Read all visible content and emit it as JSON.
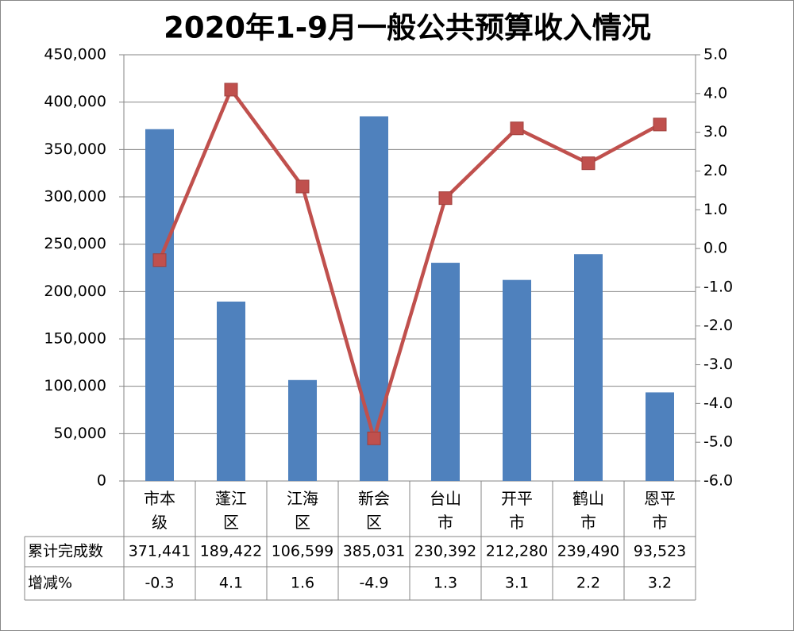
{
  "chart_data": {
    "type": "bar_line",
    "title": "2020年1-9月一般公共预算收入情况",
    "categories": [
      "市本级",
      "蓬江区",
      "江海区",
      "新会区",
      "台山市",
      "开平市",
      "鹤山市",
      "恩平市"
    ],
    "series": [
      {
        "name": "累计完成数",
        "type": "bar",
        "color": "#4f81bd",
        "values": [
          371441,
          189422,
          106599,
          385031,
          230392,
          212280,
          239490,
          93523
        ],
        "value_labels": [
          "371,441",
          "189,422",
          "106,599",
          "385,031",
          "230,392",
          "212,280",
          "239,490",
          "93,523"
        ]
      },
      {
        "name": "增减%",
        "type": "line",
        "axis": "y2",
        "color": "#c0504d",
        "values": [
          -0.3,
          4.1,
          1.6,
          -4.9,
          1.3,
          3.1,
          2.2,
          3.2
        ]
      }
    ],
    "ylim": [
      0,
      450000
    ],
    "yticks": [
      0,
      {
        "value": 50000,
        "label": "50,000"
      },
      {
        "value": 100000,
        "label": "100,000"
      },
      {
        "value": 150000,
        "label": "150,000"
      },
      {
        "value": 200000,
        "label": "200,000"
      },
      {
        "value": 250000,
        "label": "250,000"
      },
      {
        "value": 300000,
        "label": "300,000"
      },
      {
        "value": 350000,
        "label": "350,000"
      },
      {
        "value": 400000,
        "label": "400,000"
      },
      {
        "value": 450000,
        "label": "450,000"
      }
    ],
    "y2lim": [
      -6,
      5
    ],
    "y2ticks": [
      {
        "value": -6,
        "label": "-6.0"
      },
      {
        "value": -5,
        "label": "-5.0"
      },
      {
        "value": -4,
        "label": "-4.0"
      },
      {
        "value": -3,
        "label": "-3.0"
      },
      {
        "value": -2,
        "label": "-2.0"
      },
      {
        "value": -1,
        "label": "-1.0"
      },
      {
        "value": 0,
        "label": "0.0"
      },
      {
        "value": 1,
        "label": "1.0"
      },
      {
        "value": 2,
        "label": "2.0"
      },
      {
        "value": 3,
        "label": "3.0"
      },
      {
        "value": 4,
        "label": "4.0"
      },
      {
        "value": 5,
        "label": "5.0"
      }
    ],
    "grid": true
  }
}
